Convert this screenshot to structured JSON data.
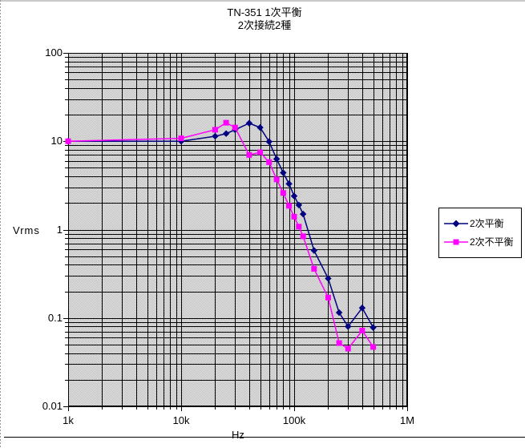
{
  "chart": {
    "title_line1": "TN-351 1次平衡",
    "title_line2": "2次接続2種",
    "y_axis_label": "Vrms",
    "x_axis_label": "Hz",
    "y_tick_labels": [
      "100",
      "10",
      "1",
      "0.1",
      "0.01"
    ],
    "x_tick_labels": [
      "1k",
      "10k",
      "100k",
      "1M"
    ],
    "plot_bg": "#e0e0e0",
    "grid_color": "#000000"
  },
  "legend": {
    "items": [
      {
        "label": "2次平衡",
        "color": "#000080",
        "marker": "diamond"
      },
      {
        "label": "2次不平衡",
        "color": "#ff00ff",
        "marker": "square"
      }
    ]
  },
  "chart_data": {
    "type": "line",
    "title": "TN-351 1次平衡 2次接続2種",
    "xlabel": "Hz",
    "ylabel": "Vrms",
    "x_scale": "log",
    "y_scale": "log",
    "xlim": [
      1000,
      1000000
    ],
    "ylim": [
      0.01,
      100
    ],
    "grid": "major and minor gridlines on both axes",
    "legend_position": "right",
    "x": [
      1000,
      10000,
      20000,
      25000,
      30000,
      40000,
      50000,
      60000,
      70000,
      80000,
      90000,
      100000,
      110000,
      120000,
      150000,
      200000,
      250000,
      300000,
      400000,
      500000
    ],
    "series": [
      {
        "name": "2次平衡",
        "color": "#000080",
        "marker": "diamond",
        "values": [
          10,
          10,
          11.4,
          12.2,
          13.5,
          16,
          14.3,
          9.9,
          6.3,
          4.4,
          3.3,
          2.4,
          1.9,
          1.5,
          0.58,
          0.28,
          0.115,
          0.08,
          0.13,
          0.078
        ]
      },
      {
        "name": "2次不平衡",
        "color": "#ff00ff",
        "marker": "square",
        "values": [
          10,
          10.8,
          13.5,
          16.2,
          14.3,
          7,
          7.5,
          5.8,
          3.7,
          2.6,
          1.86,
          1.4,
          1.08,
          0.84,
          0.36,
          0.17,
          0.052,
          0.045,
          0.072,
          0.047
        ]
      }
    ]
  }
}
